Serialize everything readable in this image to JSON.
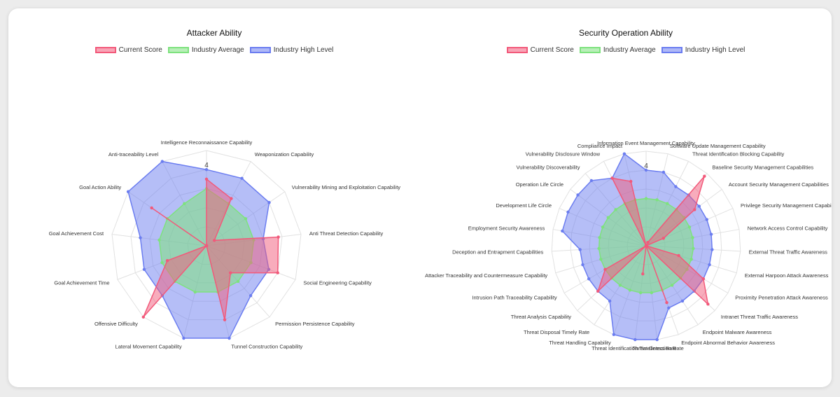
{
  "colors": {
    "current": "#f2597a",
    "average": "#7ee27e",
    "high": "#6b7df0",
    "grid": "#e1e1e1"
  },
  "legend": [
    {
      "key": "current",
      "label": "Current Score"
    },
    {
      "key": "average",
      "label": "Industry Average"
    },
    {
      "key": "high",
      "label": "Industry High Level"
    }
  ],
  "chart_data": [
    {
      "type": "radar",
      "title": "Attacker Ability",
      "max": 5,
      "tick_label": "4",
      "categories": [
        "Intelligence Reconnaissance Capability",
        "Weaponization Capability",
        "Vulnerability Mining and Exploitation Capability",
        "Anti Threat Detection Capability",
        "Social Engineering Capability",
        "Permission Persistence Capability",
        "Tunnel Construction Capability",
        "Lateral Movement Capability",
        "Offensive Difficulty",
        "Goal Achievement Time",
        "Goal Achievement Cost",
        "Goal Action Ability",
        "Anti-traceability Level"
      ],
      "series": [
        {
          "name": "Current Score",
          "key": "current",
          "values": [
            3.5,
            2.8,
            0.5,
            3.8,
            4.0,
            1.9,
            4.0,
            0.0,
            5.0,
            2.2,
            0.0,
            3.5,
            0.0
          ]
        },
        {
          "name": "Industry Average",
          "key": "average",
          "values": [
            3.0,
            2.5,
            2.5,
            2.5,
            2.5,
            2.5,
            2.5,
            2.5,
            2.5,
            2.5,
            2.5,
            2.5,
            2.5
          ]
        },
        {
          "name": "Industry High Level",
          "key": "high",
          "values": [
            4.0,
            4.0,
            4.0,
            3.0,
            3.5,
            3.5,
            5.0,
            5.0,
            3.5,
            3.5,
            3.5,
            5.0,
            5.0
          ]
        }
      ]
    },
    {
      "type": "radar",
      "title": "Security Operation Ability",
      "max": 5,
      "tick_label": "4",
      "categories": [
        "Information Event Management Capability",
        "Software Update Management Capability",
        "Threat Identification Blocking Capability",
        "Baseline Security Management Capabilities",
        "Account Security Management Capabilities",
        "Privilege Security Management Capabilities",
        "Network Access Control Capability",
        "External Threat Traffic Awareness",
        "External Harpoon Attack Awareness",
        "Proximity Penetration Attack Awareness",
        "Intranet Threat Traffic Awareness",
        "Endpoint Malware Awareness",
        "Endpoint Abnormal Behavior Awareness",
        "Threat Detection Rate",
        "Threat Identification Timeliness Rate",
        "Threat Handling Capability",
        "Threat Disposal Timely Rate",
        "Threat Analysis Capability",
        "Intrusion Path Traceability Capability",
        "Attacker Traceability and Countermeasure Capability",
        "Deception and Entrapment Capabilities",
        "Employment Security Awareness",
        "Development Life Circle",
        "Operation Life Circle",
        "Vulnerability Discoverability",
        "Vulnerability Disclosure Window",
        "Compliance Impact"
      ],
      "series": [
        {
          "name": "Current Score",
          "key": "current",
          "values": [
            0.0,
            0.0,
            0.2,
            4.8,
            3.2,
            1.0,
            0.0,
            0.0,
            1.8,
            3.5,
            4.5,
            0.0,
            3.2,
            0.0,
            1.5,
            0.0,
            0.0,
            3.5,
            2.5,
            0.0,
            0.0,
            0.0,
            0.0,
            0.0,
            0.0,
            4.0,
            3.5
          ]
        },
        {
          "name": "Industry Average",
          "key": "average",
          "values": [
            2.5,
            2.5,
            2.5,
            2.5,
            2.5,
            2.5,
            2.5,
            2.5,
            2.5,
            2.5,
            2.5,
            2.5,
            2.5,
            2.5,
            2.5,
            2.5,
            2.5,
            2.5,
            2.5,
            2.5,
            2.5,
            2.5,
            2.5,
            2.5,
            2.5,
            2.5,
            2.5
          ]
        },
        {
          "name": "Industry High Level",
          "key": "high",
          "values": [
            4.0,
            4.0,
            3.5,
            3.5,
            3.5,
            3.5,
            3.5,
            3.5,
            3.5,
            3.5,
            3.5,
            3.5,
            3.5,
            5.0,
            5.0,
            5.0,
            3.5,
            3.5,
            3.5,
            3.5,
            3.5,
            4.5,
            4.5,
            4.5,
            4.5,
            4.0,
            5.0
          ]
        }
      ]
    }
  ]
}
